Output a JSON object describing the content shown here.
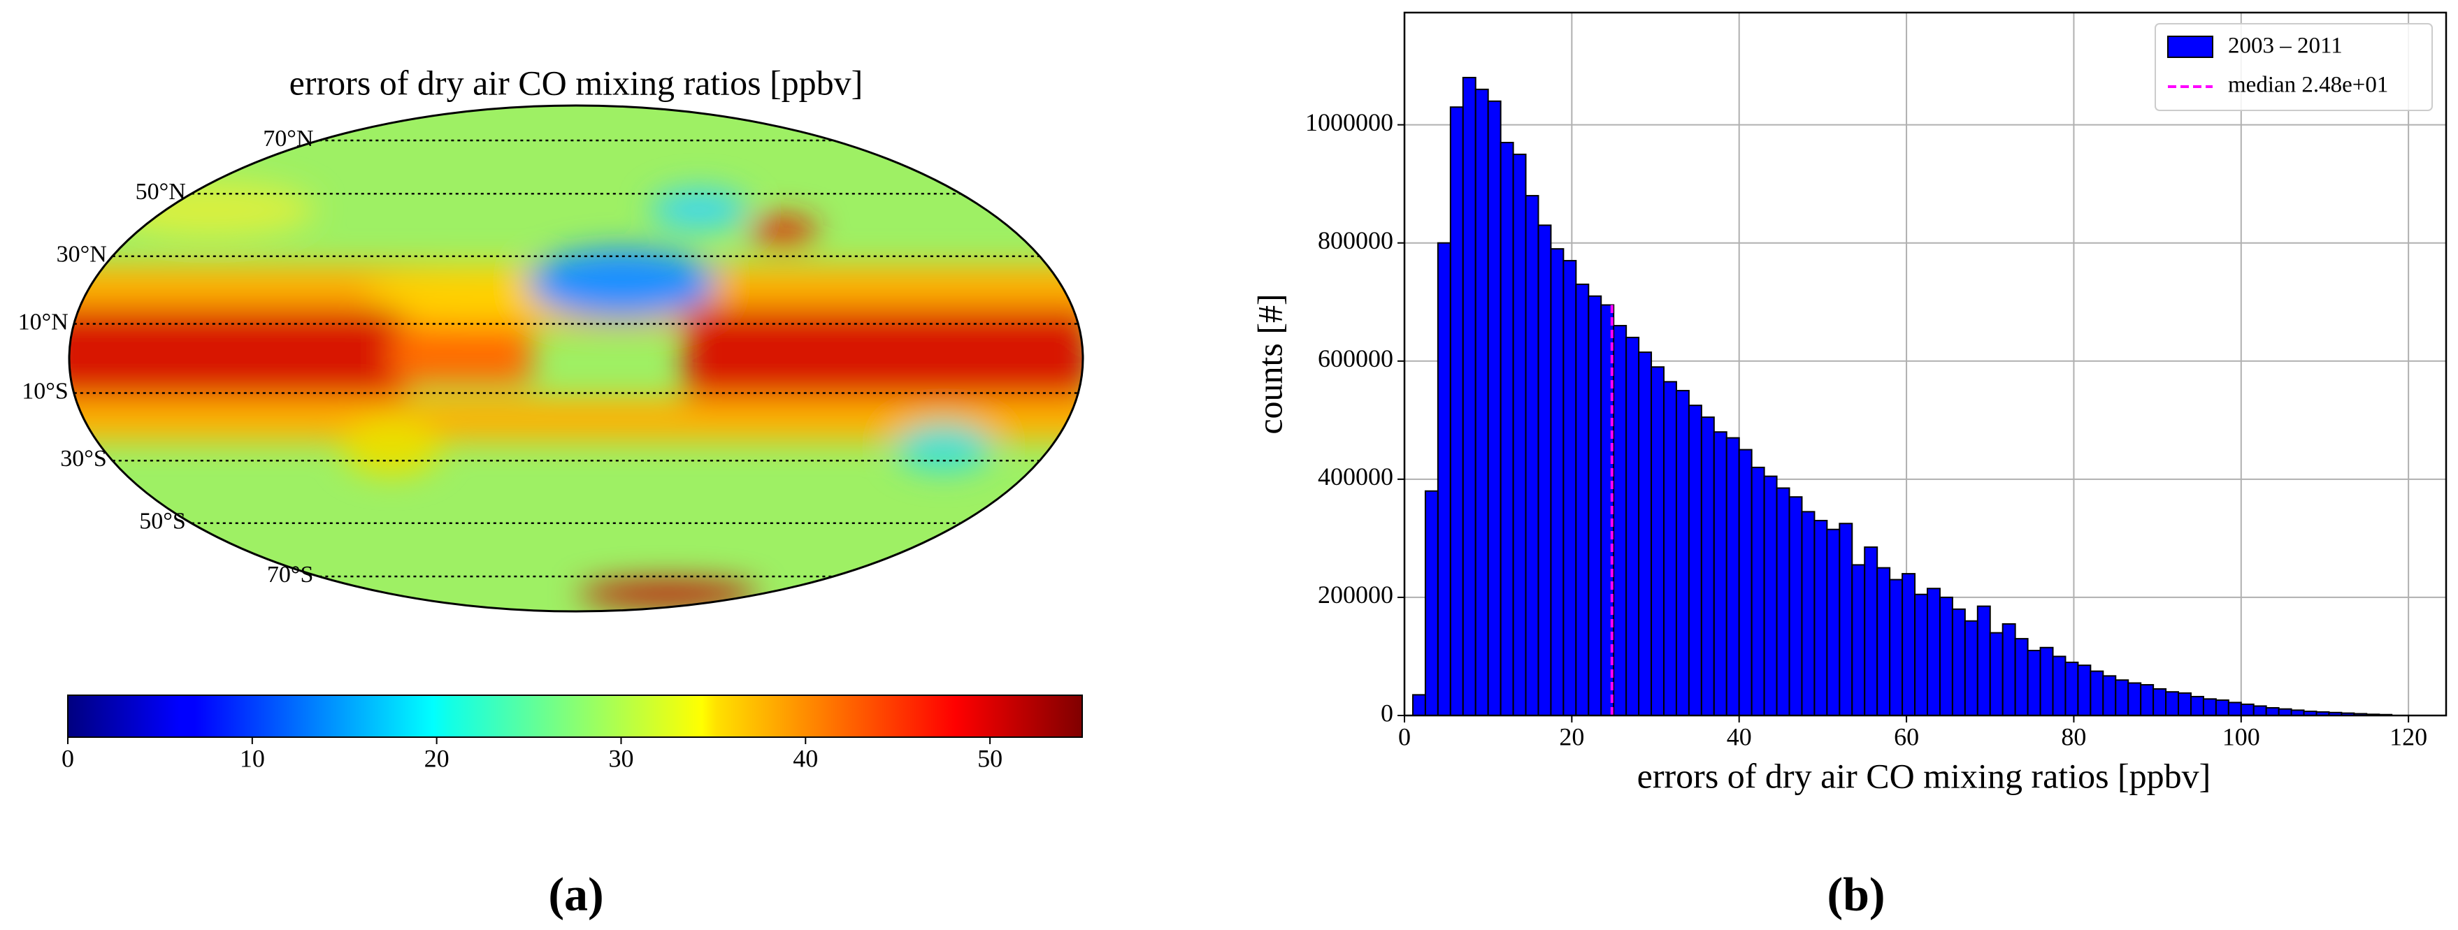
{
  "chart_data": [
    {
      "type": "map",
      "title": "errors of dry air CO mixing ratios [ppbv]",
      "panel_label": "(a)",
      "parallels": [
        {
          "value": 70,
          "label": "70°N"
        },
        {
          "value": 50,
          "label": "50°N"
        },
        {
          "value": 30,
          "label": "30°N"
        },
        {
          "value": 10,
          "label": "10°N"
        },
        {
          "value": -10,
          "label": "10°S"
        },
        {
          "value": -30,
          "label": "30°S"
        },
        {
          "value": -50,
          "label": "50°S"
        },
        {
          "value": -70,
          "label": "70°S"
        }
      ],
      "colorbar": {
        "cmap": "jet",
        "lim": [
          0,
          55
        ],
        "ticks": [
          0,
          10,
          20,
          30,
          40,
          50
        ]
      }
    },
    {
      "type": "histogram",
      "panel_label": "(b)",
      "xlabel": "errors of dry air CO mixing ratios [ppbv]",
      "ylabel": "counts [#]",
      "bins": [
        1,
        2.5,
        4,
        5.5,
        7,
        8.5,
        10,
        11.5,
        13,
        14.5,
        16,
        17.5,
        19,
        20.5,
        22,
        23.5,
        25,
        26.5,
        28,
        29.5,
        31,
        32.5,
        34,
        35.5,
        37,
        38.5,
        40,
        41.5,
        43,
        44.5,
        46,
        47.5,
        49,
        50.5,
        52,
        53.5,
        55,
        56.5,
        58,
        59.5,
        61,
        62.5,
        64,
        65.5,
        67,
        68.5,
        70,
        71.5,
        73,
        74.5,
        76,
        77.5,
        79,
        80.5,
        82,
        83.5,
        85,
        86.5,
        88,
        89.5,
        91,
        92.5,
        94,
        95.5,
        97,
        98.5,
        100,
        101.5,
        103,
        104.5,
        106,
        107.5,
        109,
        110.5,
        112,
        113.5,
        115,
        116.5,
        118
      ],
      "series": [
        {
          "name": "2003 – 2011",
          "color": "#0000ff",
          "values": [
            35000,
            380000,
            800000,
            1030000,
            1080000,
            1060000,
            1040000,
            970000,
            950000,
            880000,
            830000,
            790000,
            770000,
            730000,
            710000,
            695000,
            660000,
            640000,
            615000,
            590000,
            565000,
            550000,
            525000,
            505000,
            480000,
            470000,
            450000,
            420000,
            405000,
            385000,
            370000,
            345000,
            330000,
            315000,
            325000,
            255000,
            285000,
            250000,
            230000,
            240000,
            205000,
            215000,
            200000,
            180000,
            160000,
            185000,
            140000,
            155000,
            130000,
            110000,
            115000,
            100000,
            90000,
            85000,
            75000,
            67000,
            60000,
            55000,
            52000,
            45000,
            40000,
            38000,
            32000,
            28000,
            26000,
            22000,
            19000,
            16000,
            13000,
            11000,
            9000,
            7000,
            6000,
            5000,
            4000,
            3000,
            2000,
            1500
          ]
        }
      ],
      "median": 24.8,
      "median_label": "median 2.48e+01",
      "median_color": "#ff00ff",
      "xlim": [
        0,
        124.5
      ],
      "ylim": [
        0,
        1190000
      ],
      "xticks": [
        0,
        20,
        40,
        60,
        80,
        100,
        120
      ],
      "yticks": [
        0,
        200000,
        400000,
        600000,
        800000,
        1000000
      ],
      "grid": true,
      "legend": "upper right"
    }
  ]
}
